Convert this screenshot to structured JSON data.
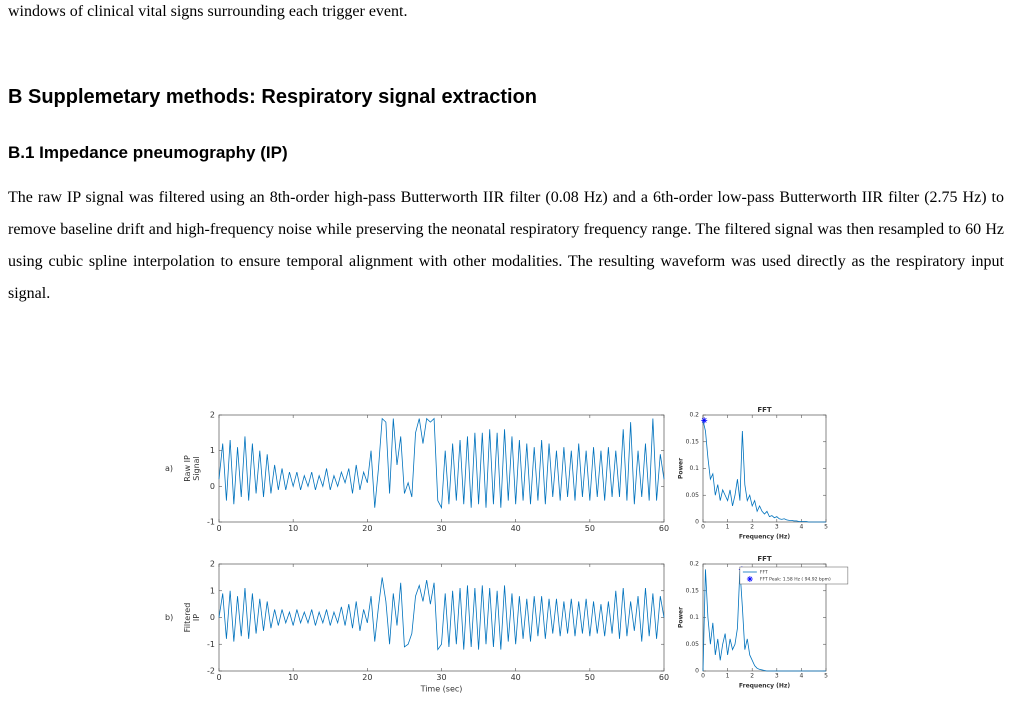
{
  "document": {
    "lead": "windows of clinical vital signs surrounding each trigger event.",
    "heading": "B  Supplemetary methods: Respiratory signal extraction",
    "subheading": "B.1  Impedance pneumography (IP)",
    "paragraph": "The raw IP signal was filtered using an 8th-order high-pass Butterworth IIR filter (0.08 Hz) and a 6th-order low-pass Butterworth IIR filter (2.75 Hz) to remove baseline drift and high-frequency noise while preserving the neonatal respiratory frequency range. The filtered signal was then resampled to 60 Hz using cubic spline interpolation to ensure temporal alignment with other modalities. The resulting waveform was used directly as the respiratory input signal."
  },
  "chart_data": [
    {
      "type": "line",
      "panel_label": "a)",
      "ylabel": [
        "Raw IP",
        "Signal"
      ],
      "xlim": [
        0,
        60
      ],
      "ylim": [
        -1,
        2
      ],
      "xticks": [
        0,
        10,
        20,
        30,
        40,
        50,
        60
      ],
      "yticks": [
        -1,
        0,
        1,
        2
      ],
      "x": [
        0,
        0.5,
        1,
        1.5,
        2,
        2.5,
        3,
        3.5,
        4,
        4.5,
        5,
        5.5,
        6,
        6.5,
        7,
        7.5,
        8,
        8.5,
        9,
        9.5,
        10,
        10.5,
        11,
        11.5,
        12,
        12.5,
        13,
        13.5,
        14,
        14.5,
        15,
        15.5,
        16,
        16.5,
        17,
        17.5,
        18,
        18.5,
        19,
        19.5,
        20,
        20.5,
        21,
        21.5,
        22,
        22.5,
        23,
        23.5,
        24,
        24.5,
        25,
        25.5,
        26,
        26.5,
        27,
        27.5,
        28,
        28.5,
        29,
        29.5,
        30,
        30.5,
        31,
        31.5,
        32,
        32.5,
        33,
        33.5,
        34,
        34.5,
        35,
        35.5,
        36,
        36.5,
        37,
        37.5,
        38,
        38.5,
        39,
        39.5,
        40,
        40.5,
        41,
        41.5,
        42,
        42.5,
        43,
        43.5,
        44,
        44.5,
        45,
        45.5,
        46,
        46.5,
        47,
        47.5,
        48,
        48.5,
        49,
        49.5,
        50,
        50.5,
        51,
        51.5,
        52,
        52.5,
        53,
        53.5,
        54,
        54.5,
        55,
        55.5,
        56,
        56.5,
        57,
        57.5,
        58,
        58.5,
        59,
        59.5,
        60
      ],
      "series": [
        {
          "color": "#0072bd",
          "values": [
            0.2,
            1.2,
            -0.4,
            1.3,
            -0.5,
            1.1,
            -0.3,
            1.4,
            -0.4,
            1.2,
            -0.2,
            1.0,
            -0.3,
            0.9,
            -0.2,
            0.6,
            -0.1,
            0.5,
            -0.1,
            0.4,
            0,
            0.4,
            -0.1,
            0.3,
            0,
            0.4,
            -0.1,
            0.3,
            0,
            0.5,
            -0.1,
            0.3,
            0,
            0.4,
            0.1,
            0.5,
            -0.2,
            0.6,
            -0.1,
            0.4,
            0.1,
            1.0,
            -0.6,
            0.5,
            1.9,
            1.8,
            -0.2,
            1.9,
            0.6,
            1.4,
            -0.2,
            0.1,
            -0.3,
            1.5,
            1.9,
            1.2,
            1.9,
            1.8,
            1.9,
            -0.4,
            -0.6,
            1.0,
            -0.5,
            1.2,
            -0.4,
            1.3,
            -0.5,
            1.4,
            -0.6,
            1.5,
            -0.5,
            1.5,
            -0.6,
            1.6,
            -0.5,
            1.5,
            -0.6,
            1.6,
            -0.4,
            1.4,
            -0.5,
            1.3,
            -0.4,
            1.2,
            -0.5,
            1.1,
            -0.4,
            1.3,
            -0.5,
            1.2,
            -0.3,
            1.0,
            -0.4,
            1.1,
            -0.3,
            1.0,
            -0.4,
            1.2,
            -0.3,
            1.0,
            -0.4,
            1.1,
            -0.3,
            1.0,
            -0.4,
            1.1,
            -0.3,
            1.0,
            -0.3,
            1.6,
            -0.4,
            1.8,
            -0.5,
            1.0,
            -0.3,
            1.2,
            -0.4,
            1.9,
            -0.4,
            0.9,
            0.2
          ]
        }
      ]
    },
    {
      "type": "line",
      "title": "FFT",
      "xlabel": "Frequency (Hz)",
      "ylabel": [
        "Power"
      ],
      "xlim": [
        0,
        5
      ],
      "ylim": [
        0,
        0.2
      ],
      "xticks": [
        0,
        1,
        2,
        3,
        4,
        5
      ],
      "yticks": [
        0,
        0.05,
        0.1,
        0.15,
        0.2
      ],
      "x": [
        0,
        0.1,
        0.2,
        0.3,
        0.4,
        0.5,
        0.6,
        0.7,
        0.8,
        0.9,
        1,
        1.1,
        1.2,
        1.3,
        1.4,
        1.5,
        1.6,
        1.7,
        1.8,
        1.9,
        2,
        2.1,
        2.2,
        2.3,
        2.4,
        2.5,
        2.6,
        2.7,
        2.8,
        2.9,
        3,
        3.1,
        3.2,
        3.3,
        3.4,
        3.5,
        3.6,
        3.7,
        3.8,
        3.9,
        4,
        4.1,
        4.2,
        4.3,
        4.4,
        4.5,
        4.6,
        4.7,
        4.8,
        4.9,
        5
      ],
      "series": [
        {
          "color": "#0072bd",
          "values": [
            0.19,
            0.17,
            0.12,
            0.08,
            0.09,
            0.05,
            0.07,
            0.04,
            0.06,
            0.05,
            0.04,
            0.06,
            0.03,
            0.05,
            0.08,
            0.04,
            0.17,
            0.07,
            0.04,
            0.05,
            0.03,
            0.04,
            0.02,
            0.03,
            0.02,
            0.015,
            0.02,
            0.01,
            0.012,
            0.008,
            0.01,
            0.006,
            0.005,
            0.006,
            0.004,
            0.003,
            0.003,
            0.002,
            0.002,
            0.001,
            0.001,
            0.001,
            0.001,
            0,
            0,
            0,
            0,
            0,
            0,
            0,
            0
          ]
        }
      ],
      "peak": {
        "x": 0.05,
        "y": 0.19,
        "color": "#0000ff"
      }
    },
    {
      "type": "line",
      "panel_label": "b)",
      "ylabel": [
        "Filtered",
        "IP"
      ],
      "xlabel": "Time (sec)",
      "xlim": [
        0,
        60
      ],
      "ylim": [
        -2,
        2
      ],
      "xticks": [
        0,
        10,
        20,
        30,
        40,
        50,
        60
      ],
      "yticks": [
        -2,
        -1,
        0,
        1,
        2
      ],
      "x": [
        0,
        0.5,
        1,
        1.5,
        2,
        2.5,
        3,
        3.5,
        4,
        4.5,
        5,
        5.5,
        6,
        6.5,
        7,
        7.5,
        8,
        8.5,
        9,
        9.5,
        10,
        10.5,
        11,
        11.5,
        12,
        12.5,
        13,
        13.5,
        14,
        14.5,
        15,
        15.5,
        16,
        16.5,
        17,
        17.5,
        18,
        18.5,
        19,
        19.5,
        20,
        20.5,
        21,
        21.5,
        22,
        22.5,
        23,
        23.5,
        24,
        24.5,
        25,
        25.5,
        26,
        26.5,
        27,
        27.5,
        28,
        28.5,
        29,
        29.5,
        30,
        30.5,
        31,
        31.5,
        32,
        32.5,
        33,
        33.5,
        34,
        34.5,
        35,
        35.5,
        36,
        36.5,
        37,
        37.5,
        38,
        38.5,
        39,
        39.5,
        40,
        40.5,
        41,
        41.5,
        42,
        42.5,
        43,
        43.5,
        44,
        44.5,
        45,
        45.5,
        46,
        46.5,
        47,
        47.5,
        48,
        48.5,
        49,
        49.5,
        50,
        50.5,
        51,
        51.5,
        52,
        52.5,
        53,
        53.5,
        54,
        54.5,
        55,
        55.5,
        56,
        56.5,
        57,
        57.5,
        58,
        58.5,
        59,
        59.5,
        60
      ],
      "series": [
        {
          "color": "#0072bd",
          "values": [
            0,
            0.9,
            -0.8,
            1.0,
            -0.9,
            0.8,
            -0.7,
            1.1,
            -0.8,
            0.9,
            -0.6,
            0.7,
            -0.5,
            0.6,
            -0.4,
            0.3,
            -0.3,
            0.3,
            -0.2,
            0.2,
            -0.3,
            0.3,
            -0.2,
            0.2,
            -0.2,
            0.3,
            -0.3,
            0.2,
            -0.2,
            0.3,
            -0.3,
            0.2,
            -0.2,
            0.4,
            -0.3,
            0.5,
            -0.4,
            0.6,
            -0.5,
            0.3,
            -0.2,
            0.8,
            -0.9,
            0.4,
            1.5,
            0.6,
            -1.0,
            0.9,
            -0.3,
            1.3,
            -1.1,
            -1.0,
            -0.6,
            0.8,
            1.2,
            0.6,
            1.4,
            0.5,
            1.3,
            -1.2,
            -1.0,
            0.9,
            -1.1,
            1.0,
            -1.0,
            1.1,
            -1.2,
            1.2,
            -1.1,
            1.1,
            -1.2,
            1.2,
            -1.0,
            1.1,
            -1.1,
            1.0,
            -1.2,
            1.2,
            -0.9,
            0.9,
            -1.0,
            0.8,
            -0.8,
            0.7,
            -0.9,
            0.8,
            -0.7,
            0.8,
            -0.8,
            0.7,
            -0.6,
            0.7,
            -0.7,
            0.6,
            -0.6,
            0.7,
            -0.7,
            0.6,
            -0.6,
            0.7,
            -0.7,
            0.6,
            -0.6,
            0.5,
            -0.7,
            0.6,
            -0.6,
            1.0,
            -0.8,
            1.1,
            -0.7,
            0.6,
            -0.5,
            0.8,
            -0.9,
            1.1,
            -0.7,
            0.9,
            -0.8,
            0.8,
            0
          ]
        }
      ]
    },
    {
      "type": "line",
      "title": "FFT",
      "xlabel": "Frequency (Hz)",
      "ylabel": [
        "Power"
      ],
      "xlim": [
        0,
        5
      ],
      "ylim": [
        0,
        0.2
      ],
      "xticks": [
        0,
        1,
        2,
        3,
        4,
        5
      ],
      "yticks": [
        0,
        0.05,
        0.1,
        0.15,
        0.2
      ],
      "x": [
        0,
        0.1,
        0.2,
        0.3,
        0.4,
        0.5,
        0.6,
        0.7,
        0.8,
        0.9,
        1,
        1.1,
        1.2,
        1.3,
        1.4,
        1.5,
        1.6,
        1.7,
        1.8,
        1.9,
        2,
        2.1,
        2.2,
        2.3,
        2.4,
        2.5,
        2.6,
        2.7,
        2.8,
        2.9,
        3,
        3.1,
        3.2,
        3.3,
        3.4,
        3.5,
        3.6,
        3.7,
        3.8,
        3.9,
        4,
        4.1,
        4.2,
        4.3,
        4.4,
        4.5,
        4.6,
        4.7,
        4.8,
        4.9,
        5
      ],
      "series": [
        {
          "name": "FFT",
          "color": "#0072bd",
          "values": [
            0,
            0.19,
            0.1,
            0.05,
            0.09,
            0.03,
            0.06,
            0.02,
            0.05,
            0.07,
            0.03,
            0.06,
            0.04,
            0.05,
            0.08,
            0.19,
            0.12,
            0.04,
            0.06,
            0.03,
            0.02,
            0.01,
            0.005,
            0.003,
            0.002,
            0.001,
            0,
            0,
            0,
            0,
            0,
            0,
            0,
            0,
            0,
            0,
            0,
            0,
            0,
            0,
            0,
            0,
            0,
            0,
            0,
            0,
            0,
            0,
            0,
            0,
            0
          ]
        }
      ],
      "peak": {
        "x": 1.58,
        "y": 0.19,
        "color": "#0000ff",
        "label": "FFT Peak:  1.58 Hz ( 94.92 bpm)"
      }
    }
  ]
}
